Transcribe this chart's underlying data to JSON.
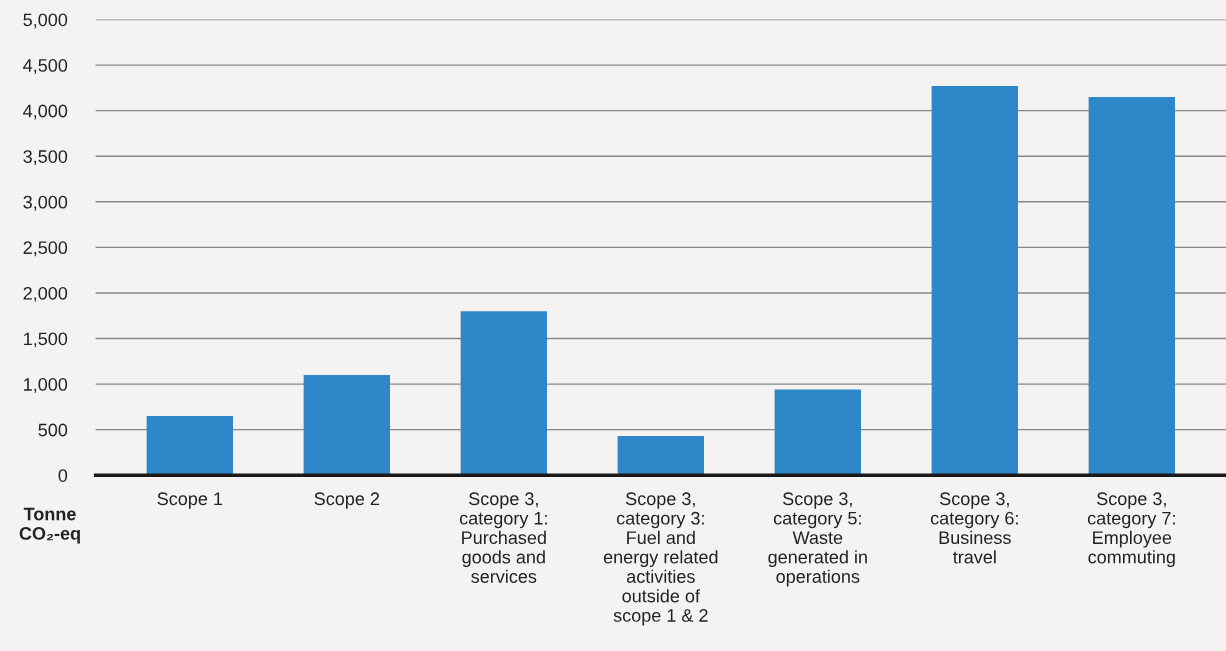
{
  "chart_data": {
    "type": "bar",
    "ylabel": "Tonne\nCO₂-eq",
    "categories": [
      "Scope 1",
      "Scope 2",
      "Scope 3,\ncategory 1:\nPurchased\ngoods and\nservices",
      "Scope 3,\ncategory 3:\nFuel and\nenergy related\nactivities\noutside of\nscope 1 & 2",
      "Scope 3,\ncategory 5:\nWaste\ngenerated in\noperations",
      "Scope 3,\ncategory 6:\nBusiness\ntravel",
      "Scope 3,\ncategory 7:\nEmployee\ncommuting"
    ],
    "values": [
      650,
      1100,
      1800,
      430,
      940,
      4270,
      4150
    ],
    "color": "#2e87c8",
    "ylim": [
      0,
      5000
    ],
    "yticks": [
      {
        "value": 0,
        "label": "0"
      },
      {
        "value": 500,
        "label": "500"
      },
      {
        "value": 1000,
        "label": "1,000"
      },
      {
        "value": 1500,
        "label": "1,500"
      },
      {
        "value": 2000,
        "label": "2,000"
      },
      {
        "value": 2500,
        "label": "2,500"
      },
      {
        "value": 3000,
        "label": "3,000"
      },
      {
        "value": 3500,
        "label": "3,500"
      },
      {
        "value": 4000,
        "label": "4,000"
      },
      {
        "value": 4500,
        "label": "4,500"
      },
      {
        "value": 5000,
        "label": "5,000"
      }
    ],
    "grid": "y"
  }
}
